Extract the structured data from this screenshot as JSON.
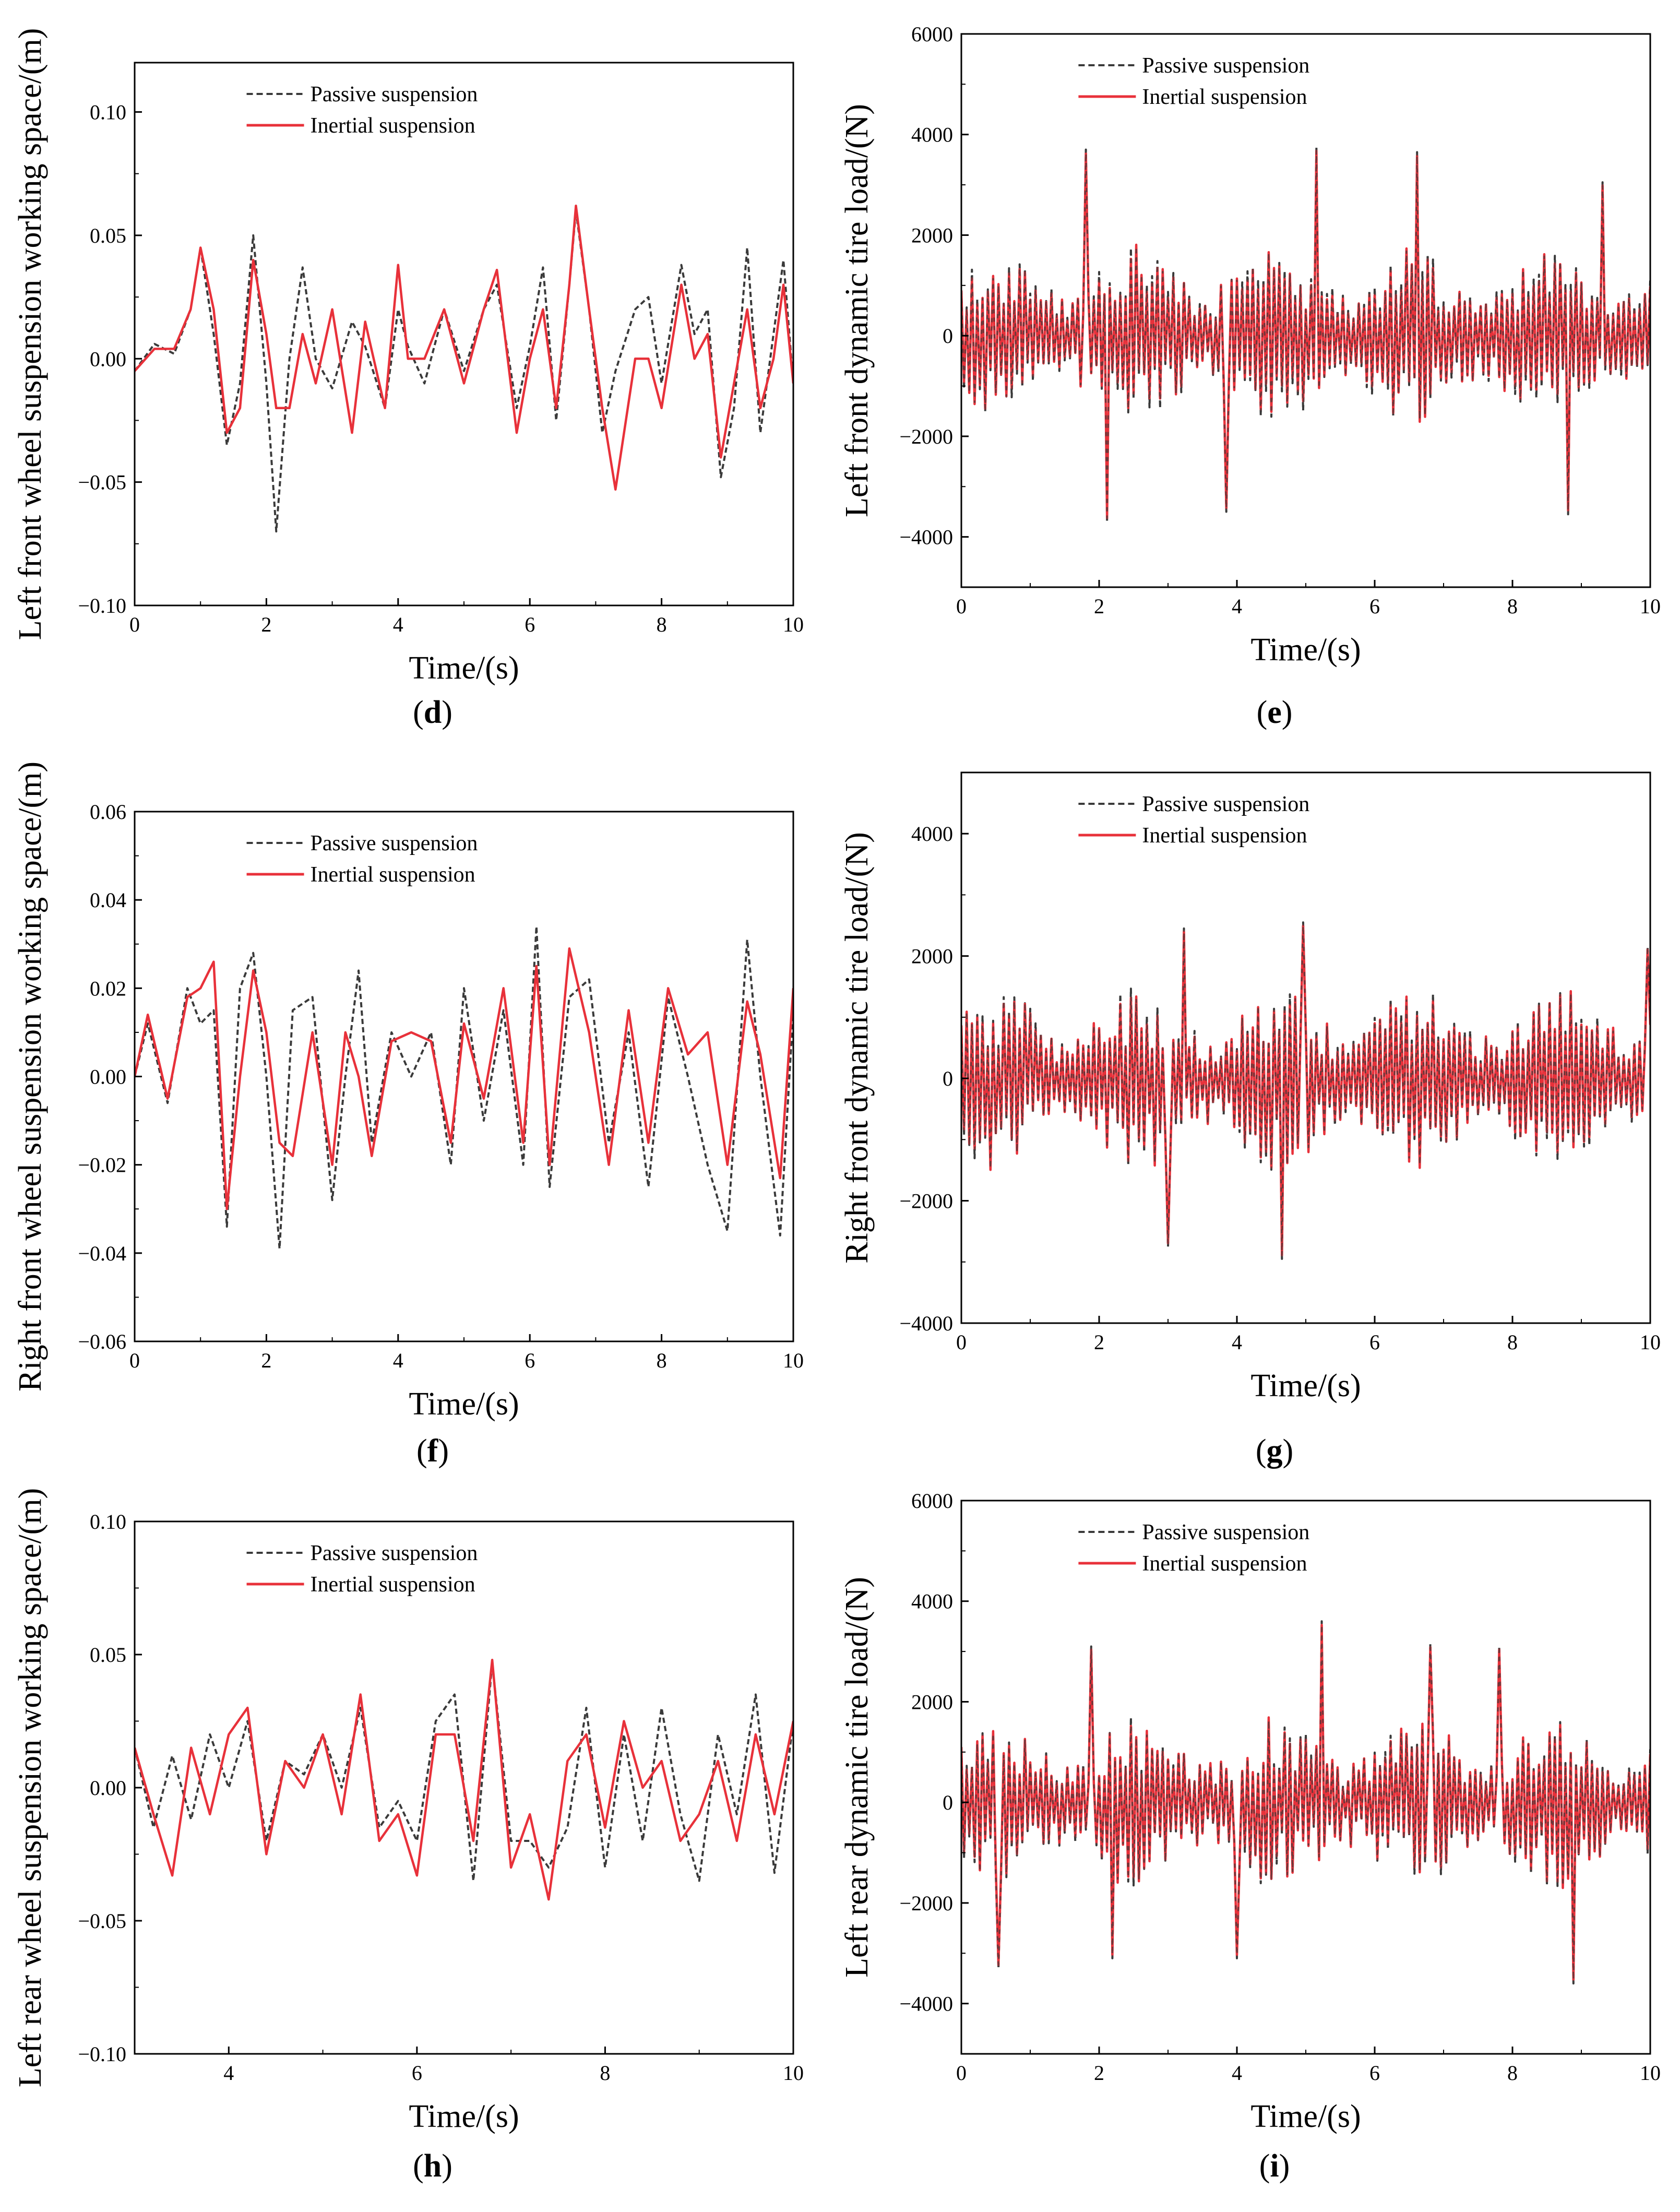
{
  "figure": {
    "legend": {
      "passive_label": "Passive suspension",
      "inertial_label": "Inertial suspension"
    },
    "colors": {
      "passive": "#3a3a3a",
      "inertial": "#e8313a",
      "axis": "#000000"
    }
  },
  "chart_data": [
    {
      "id": "d",
      "panel_label": "d",
      "type": "line",
      "xlabel": "Time/(s)",
      "ylabel": "Left front wheel suspension working space/(m)",
      "xlim": [
        0,
        10
      ],
      "ylim": [
        -0.1,
        0.12
      ],
      "xticks": [
        0,
        2,
        4,
        6,
        8,
        10
      ],
      "yticks": [
        -0.1,
        -0.05,
        0.0,
        0.05,
        0.1
      ],
      "ytick_labels": [
        "−0.10",
        "−0.05",
        "0.00",
        "0.05",
        "0.10"
      ],
      "xtick_labels": [
        "0",
        "2",
        "4",
        "6",
        "8",
        "10"
      ],
      "legend_position": "top-center",
      "series": [
        {
          "name": "Passive suspension",
          "style": "dashed",
          "x": [
            0,
            0.3,
            0.6,
            0.85,
            1.0,
            1.2,
            1.4,
            1.6,
            1.8,
            2.0,
            2.15,
            2.35,
            2.55,
            2.75,
            3.0,
            3.3,
            3.5,
            3.8,
            4.0,
            4.15,
            4.4,
            4.7,
            5.0,
            5.3,
            5.5,
            5.8,
            6.0,
            6.2,
            6.4,
            6.6,
            6.7,
            6.9,
            7.1,
            7.3,
            7.6,
            7.8,
            8.0,
            8.3,
            8.5,
            8.7,
            8.9,
            9.1,
            9.3,
            9.5,
            9.7,
            9.85,
            10
          ],
          "y": [
            -0.005,
            0.006,
            0.002,
            0.02,
            0.045,
            0.01,
            -0.035,
            -0.01,
            0.05,
            -0.01,
            -0.07,
            0.0,
            0.037,
            0.0,
            -0.012,
            0.015,
            0.005,
            -0.02,
            0.02,
            0.005,
            -0.01,
            0.02,
            -0.005,
            0.02,
            0.03,
            -0.02,
            0.005,
            0.037,
            -0.025,
            0.03,
            0.06,
            0.02,
            -0.03,
            -0.005,
            0.02,
            0.025,
            -0.01,
            0.038,
            0.01,
            0.02,
            -0.048,
            -0.02,
            0.045,
            -0.03,
            0.01,
            0.04,
            -0.01
          ]
        },
        {
          "name": "Inertial suspension",
          "style": "solid",
          "x": [
            0,
            0.3,
            0.6,
            0.85,
            1.0,
            1.2,
            1.4,
            1.6,
            1.8,
            2.0,
            2.15,
            2.35,
            2.55,
            2.75,
            3.0,
            3.3,
            3.5,
            3.8,
            4.0,
            4.15,
            4.4,
            4.7,
            5.0,
            5.3,
            5.5,
            5.8,
            6.0,
            6.2,
            6.4,
            6.6,
            6.7,
            6.9,
            7.1,
            7.3,
            7.6,
            7.8,
            8.0,
            8.3,
            8.5,
            8.7,
            8.9,
            9.1,
            9.3,
            9.5,
            9.7,
            9.85,
            10
          ],
          "y": [
            -0.005,
            0.004,
            0.004,
            0.02,
            0.045,
            0.02,
            -0.03,
            -0.02,
            0.04,
            0.01,
            -0.02,
            -0.02,
            0.01,
            -0.01,
            0.02,
            -0.03,
            0.015,
            -0.02,
            0.038,
            0.0,
            0.0,
            0.02,
            -0.01,
            0.02,
            0.036,
            -0.03,
            0.0,
            0.02,
            -0.02,
            0.03,
            0.062,
            0.02,
            -0.02,
            -0.053,
            0.0,
            0.0,
            -0.02,
            0.03,
            0.0,
            0.01,
            -0.04,
            -0.01,
            0.02,
            -0.02,
            0.0,
            0.03,
            -0.01
          ]
        }
      ]
    },
    {
      "id": "e",
      "panel_label": "e",
      "type": "line",
      "xlabel": "Time/(s)",
      "ylabel": "Left front dynamic tire load/(N)",
      "xlim": [
        0,
        10
      ],
      "ylim": [
        -5000,
        6000
      ],
      "xticks": [
        0,
        2,
        4,
        6,
        8,
        10
      ],
      "yticks": [
        -4000,
        -2000,
        0,
        2000,
        4000,
        6000
      ],
      "ytick_labels": [
        "−4000",
        "−2000",
        "0",
        "2000",
        "4000",
        "6000"
      ],
      "xtick_labels": [
        "0",
        "2",
        "4",
        "6",
        "8",
        "10"
      ],
      "legend_position": "top-center",
      "noise": {
        "passive_amp": 1800,
        "inertial_amp": 1700,
        "samples": 260
      },
      "peaks": [
        [
          1.8,
          3700
        ],
        [
          2.1,
          -3700
        ],
        [
          3.85,
          -3500
        ],
        [
          5.15,
          3750
        ],
        [
          6.6,
          3650
        ],
        [
          8.8,
          -3550
        ],
        [
          9.3,
          3050
        ]
      ]
    },
    {
      "id": "f",
      "panel_label": "f",
      "type": "line",
      "xlabel": "Time/(s)",
      "ylabel": "Right front wheel suspension working space/(m)",
      "xlim": [
        0,
        10
      ],
      "ylim": [
        -0.06,
        0.06
      ],
      "xticks": [
        0,
        2,
        4,
        6,
        8,
        10
      ],
      "yticks": [
        -0.06,
        -0.04,
        -0.02,
        0.0,
        0.02,
        0.04,
        0.06
      ],
      "ytick_labels": [
        "−0.06",
        "−0.04",
        "−0.02",
        "0.00",
        "0.02",
        "0.04",
        "0.06"
      ],
      "xtick_labels": [
        "0",
        "2",
        "4",
        "6",
        "8",
        "10"
      ],
      "legend_position": "top-center",
      "series": [
        {
          "name": "Passive suspension",
          "style": "dashed",
          "x": [
            0,
            0.2,
            0.5,
            0.8,
            1.0,
            1.2,
            1.4,
            1.6,
            1.8,
            2.0,
            2.2,
            2.4,
            2.7,
            3.0,
            3.2,
            3.4,
            3.6,
            3.9,
            4.2,
            4.5,
            4.8,
            5.0,
            5.3,
            5.6,
            5.9,
            6.1,
            6.3,
            6.6,
            6.9,
            7.2,
            7.5,
            7.8,
            8.1,
            8.4,
            8.7,
            9.0,
            9.3,
            9.5,
            9.8,
            10
          ],
          "y": [
            0.0,
            0.012,
            -0.006,
            0.02,
            0.012,
            0.015,
            -0.034,
            0.02,
            0.028,
            0.0,
            -0.039,
            0.015,
            0.018,
            -0.028,
            0.0,
            0.024,
            -0.015,
            0.01,
            0.0,
            0.01,
            -0.02,
            0.02,
            -0.01,
            0.015,
            -0.02,
            0.034,
            -0.025,
            0.018,
            0.022,
            -0.015,
            0.01,
            -0.025,
            0.018,
            0.0,
            -0.02,
            -0.035,
            0.031,
            0.0,
            -0.036,
            0.015
          ]
        },
        {
          "name": "Inertial suspension",
          "style": "solid",
          "x": [
            0,
            0.2,
            0.5,
            0.8,
            1.0,
            1.2,
            1.4,
            1.6,
            1.8,
            2.0,
            2.2,
            2.4,
            2.7,
            3.0,
            3.2,
            3.4,
            3.6,
            3.9,
            4.2,
            4.5,
            4.8,
            5.0,
            5.3,
            5.6,
            5.9,
            6.1,
            6.3,
            6.6,
            6.9,
            7.2,
            7.5,
            7.8,
            8.1,
            8.4,
            8.7,
            9.0,
            9.3,
            9.5,
            9.8,
            10
          ],
          "y": [
            0.0,
            0.014,
            -0.005,
            0.018,
            0.02,
            0.026,
            -0.03,
            0.0,
            0.024,
            0.01,
            -0.015,
            -0.018,
            0.01,
            -0.02,
            0.01,
            0.0,
            -0.018,
            0.008,
            0.01,
            0.008,
            -0.015,
            0.012,
            -0.005,
            0.02,
            -0.015,
            0.025,
            -0.02,
            0.029,
            0.01,
            -0.02,
            0.015,
            -0.015,
            0.02,
            0.005,
            0.01,
            -0.02,
            0.017,
            0.005,
            -0.023,
            0.02
          ]
        }
      ]
    },
    {
      "id": "g",
      "panel_label": "g",
      "type": "line",
      "xlabel": "Time/(s)",
      "ylabel": "Right front dynamic tire load/(N)",
      "xlim": [
        0,
        10
      ],
      "ylim": [
        -4000,
        5000
      ],
      "xticks": [
        0,
        2,
        4,
        6,
        8,
        10
      ],
      "yticks": [
        -4000,
        -2000,
        0,
        2000,
        4000
      ],
      "ytick_labels": [
        "−4000",
        "−2000",
        "0",
        "2000",
        "4000"
      ],
      "xtick_labels": [
        "0",
        "2",
        "4",
        "6",
        "8",
        "10"
      ],
      "legend_position": "top-center",
      "noise": {
        "passive_amp": 1500,
        "inertial_amp": 1450,
        "samples": 260
      },
      "peaks": [
        [
          3.0,
          -2750
        ],
        [
          3.25,
          2450
        ],
        [
          4.65,
          -2950
        ],
        [
          4.95,
          2550
        ],
        [
          9.95,
          2150
        ]
      ]
    },
    {
      "id": "h",
      "panel_label": "h",
      "type": "line",
      "xlabel": "Time/(s)",
      "ylabel": "Left rear wheel suspension working space/(m)",
      "xlim": [
        3,
        10
      ],
      "ylim": [
        -0.1,
        0.1
      ],
      "xticks": [
        4,
        6,
        8,
        10
      ],
      "yticks": [
        -0.1,
        -0.05,
        0.0,
        0.05,
        0.1
      ],
      "ytick_labels": [
        "−0.10",
        "−0.05",
        "0.00",
        "0.05",
        "0.10"
      ],
      "xtick_labels": [
        "4",
        "6",
        "8",
        "10"
      ],
      "legend_position": "top-center",
      "series": [
        {
          "name": "Passive suspension",
          "style": "dashed",
          "x": [
            3.0,
            3.2,
            3.4,
            3.6,
            3.8,
            4.0,
            4.2,
            4.4,
            4.6,
            4.8,
            5.0,
            5.2,
            5.4,
            5.6,
            5.8,
            6.0,
            6.2,
            6.4,
            6.6,
            6.8,
            7.0,
            7.2,
            7.4,
            7.6,
            7.8,
            8.0,
            8.2,
            8.4,
            8.6,
            8.8,
            9.0,
            9.2,
            9.4,
            9.6,
            9.8,
            10
          ],
          "y": [
            0.015,
            -0.015,
            0.012,
            -0.012,
            0.02,
            0.0,
            0.025,
            -0.02,
            0.01,
            0.005,
            0.02,
            0.0,
            0.03,
            -0.015,
            -0.005,
            -0.02,
            0.025,
            0.035,
            -0.035,
            0.047,
            -0.02,
            -0.02,
            -0.03,
            -0.015,
            0.03,
            -0.03,
            0.02,
            -0.02,
            0.03,
            -0.01,
            -0.035,
            0.02,
            -0.01,
            0.035,
            -0.032,
            0.025
          ]
        },
        {
          "name": "Inertial suspension",
          "style": "solid",
          "x": [
            3.0,
            3.2,
            3.4,
            3.6,
            3.8,
            4.0,
            4.2,
            4.4,
            4.6,
            4.8,
            5.0,
            5.2,
            5.4,
            5.6,
            5.8,
            6.0,
            6.2,
            6.4,
            6.6,
            6.8,
            7.0,
            7.2,
            7.4,
            7.6,
            7.8,
            8.0,
            8.2,
            8.4,
            8.6,
            8.8,
            9.0,
            9.2,
            9.4,
            9.6,
            9.8,
            10
          ],
          "y": [
            0.015,
            -0.01,
            -0.033,
            0.015,
            -0.01,
            0.02,
            0.03,
            -0.025,
            0.01,
            0.0,
            0.02,
            -0.01,
            0.035,
            -0.02,
            -0.01,
            -0.033,
            0.02,
            0.02,
            -0.02,
            0.048,
            -0.03,
            -0.01,
            -0.042,
            0.01,
            0.02,
            -0.015,
            0.025,
            0.0,
            0.01,
            -0.02,
            -0.01,
            0.01,
            -0.02,
            0.02,
            -0.01,
            0.025
          ]
        }
      ]
    },
    {
      "id": "i",
      "panel_label": "i",
      "type": "line",
      "xlabel": "Time/(s)",
      "ylabel": "Left rear dynamic tire load/(N)",
      "xlim": [
        0,
        10
      ],
      "ylim": [
        -5000,
        6000
      ],
      "xticks": [
        0,
        2,
        4,
        6,
        8,
        10
      ],
      "yticks": [
        -4000,
        -2000,
        0,
        2000,
        4000,
        6000
      ],
      "ytick_labels": [
        "−4000",
        "−2000",
        "0",
        "2000",
        "4000",
        "6000"
      ],
      "xtick_labels": [
        "0",
        "2",
        "4",
        "6",
        "8",
        "10"
      ],
      "legend_position": "top-center",
      "noise": {
        "passive_amp": 1700,
        "inertial_amp": 1650,
        "samples": 260
      },
      "peaks": [
        [
          0.55,
          -3300
        ],
        [
          1.9,
          3100
        ],
        [
          2.2,
          -3100
        ],
        [
          4.0,
          -3100
        ],
        [
          5.25,
          3600
        ],
        [
          6.8,
          3150
        ],
        [
          7.8,
          3100
        ],
        [
          8.9,
          -3600
        ]
      ]
    }
  ]
}
